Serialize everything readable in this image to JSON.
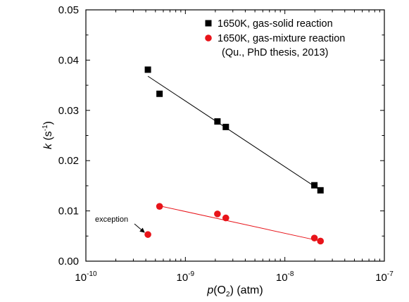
{
  "chart_data": {
    "type": "scatter",
    "x_scale": "log",
    "xlim": [
      1e-10,
      1e-07
    ],
    "ylim": [
      0,
      0.05
    ],
    "x_ticks": [
      "10",
      "10",
      "10",
      "10"
    ],
    "x_tick_exponents": [
      "-10",
      "-9",
      "-8",
      "-7"
    ],
    "x_tick_values": [
      1e-10,
      1e-09,
      1e-08,
      1e-07
    ],
    "y_ticks": [
      "0.00",
      "0.01",
      "0.02",
      "0.03",
      "0.04",
      "0.05"
    ],
    "y_tick_values": [
      0,
      0.01,
      0.02,
      0.03,
      0.04,
      0.05
    ],
    "xlabel": {
      "prefix": "p",
      "paren_open": "(O",
      "sub": "2",
      "paren_close": ")",
      "unit": " (atm)"
    },
    "ylabel": {
      "prefix": "k",
      "unit_open": " (s",
      "sup": "-1",
      "unit_close": ")"
    },
    "legend_position": "top-right",
    "legend": {
      "series1": "1650K, gas-solid reaction",
      "series2": "1650K, gas-mixture reaction",
      "series2_note": "(Qu., PhD thesis, 2013)"
    },
    "series": [
      {
        "name": "1650K, gas-solid reaction",
        "marker": "square",
        "color": "#000000",
        "points": [
          {
            "x": 4.2e-10,
            "y": 0.0381
          },
          {
            "x": 5.5e-10,
            "y": 0.0333
          },
          {
            "x": 2.1e-09,
            "y": 0.0278
          },
          {
            "x": 2.55e-09,
            "y": 0.0267
          },
          {
            "x": 1.98e-08,
            "y": 0.0151
          },
          {
            "x": 2.28e-08,
            "y": 0.0141
          }
        ],
        "fit": [
          {
            "x": 4.2e-10,
            "y": 0.0368
          },
          {
            "x": 2.28e-08,
            "y": 0.0141
          }
        ]
      },
      {
        "name": "1650K, gas-mixture reaction",
        "marker": "circle",
        "color": "#e8141a",
        "points": [
          {
            "x": 4.2e-10,
            "y": 0.0053
          },
          {
            "x": 5.5e-10,
            "y": 0.0109
          },
          {
            "x": 2.1e-09,
            "y": 0.0094
          },
          {
            "x": 2.55e-09,
            "y": 0.0086
          },
          {
            "x": 1.98e-08,
            "y": 0.0046
          },
          {
            "x": 2.28e-08,
            "y": 0.004
          }
        ],
        "fit": [
          {
            "x": 5.5e-10,
            "y": 0.011
          },
          {
            "x": 2.28e-08,
            "y": 0.004
          }
        ]
      }
    ],
    "annotation": {
      "text": "exception",
      "x": 4.2e-10,
      "y": 0.0053
    }
  }
}
